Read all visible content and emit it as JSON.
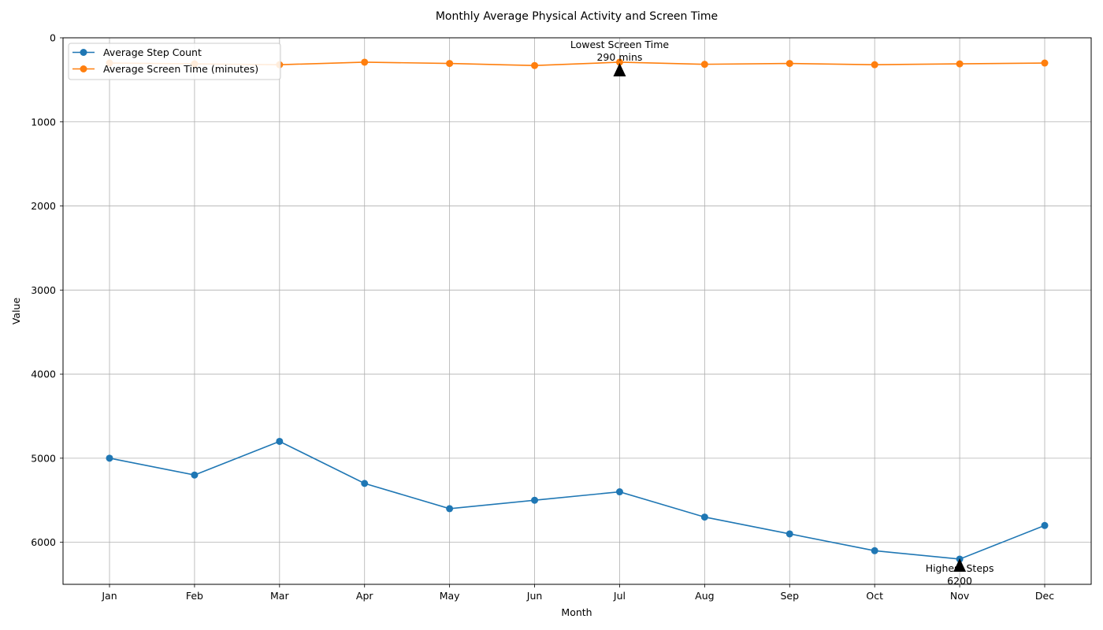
{
  "chart_data": {
    "type": "line",
    "title": "Monthly Average Physical Activity and Screen Time",
    "xlabel": "Month",
    "ylabel": "Value",
    "categories": [
      "Jan",
      "Feb",
      "Mar",
      "Apr",
      "May",
      "Jun",
      "Jul",
      "Aug",
      "Sep",
      "Oct",
      "Nov",
      "Dec"
    ],
    "y_inverted": true,
    "ylim": [
      6500,
      0
    ],
    "yticks": [
      0,
      1000,
      2000,
      3000,
      4000,
      5000,
      6000
    ],
    "grid": true,
    "legend_position": "top-left",
    "series": [
      {
        "name": "Average Step Count",
        "color": "#1f77b4",
        "marker": "circle",
        "values": [
          5000,
          5200,
          4800,
          5300,
          5600,
          5500,
          5400,
          5700,
          5900,
          6100,
          6200,
          5800
        ]
      },
      {
        "name": "Average Screen Time (minutes)",
        "color": "#ff7f0e",
        "marker": "circle",
        "values": [
          300,
          310,
          320,
          290,
          305,
          330,
          290,
          315,
          305,
          320,
          310,
          300
        ]
      }
    ],
    "annotations": [
      {
        "line1": "Lowest Screen Time",
        "line2": "290 mins",
        "category": "Jul",
        "value": 290
      },
      {
        "line1": "Highest Steps",
        "line2": "6200",
        "category": "Nov",
        "value": 6200
      }
    ]
  }
}
